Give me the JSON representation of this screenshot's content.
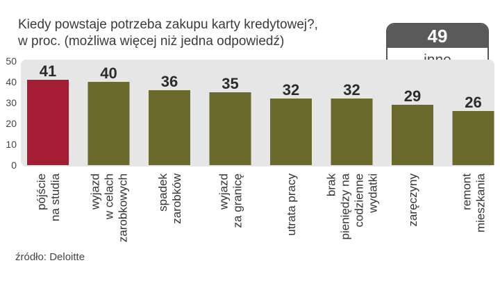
{
  "title_line1": "Kiedy powstaje potrzeba zakupu karty kredytowej?,",
  "title_line2": "w proc. (możliwa więcej niż jedna odpowiedź)",
  "inne": {
    "value": "49",
    "label": "inne"
  },
  "source": "źródło: Deloitte",
  "colors": {
    "highlight": "#a51c35",
    "bar": "#6b6a2c",
    "background": "#e6e6e6"
  },
  "chart_data": {
    "type": "bar",
    "categories": [
      [
        "pójście",
        "na studia"
      ],
      [
        "wyjazd",
        "w celach",
        "zarobkowych"
      ],
      [
        "spadek",
        "zarobków"
      ],
      [
        "wyjazd",
        "za granicę"
      ],
      [
        "utrata pracy"
      ],
      [
        "brak",
        "pieniędzy na",
        "codzienne",
        "wydatki"
      ],
      [
        "zaręczyny"
      ],
      [
        "remont",
        "mieszkania"
      ]
    ],
    "values": [
      41,
      40,
      36,
      35,
      32,
      32,
      29,
      26
    ],
    "highlight_index": 0,
    "ylim": [
      0,
      50
    ],
    "yticks": [
      0,
      10,
      20,
      30,
      40,
      50
    ],
    "grid": false
  }
}
